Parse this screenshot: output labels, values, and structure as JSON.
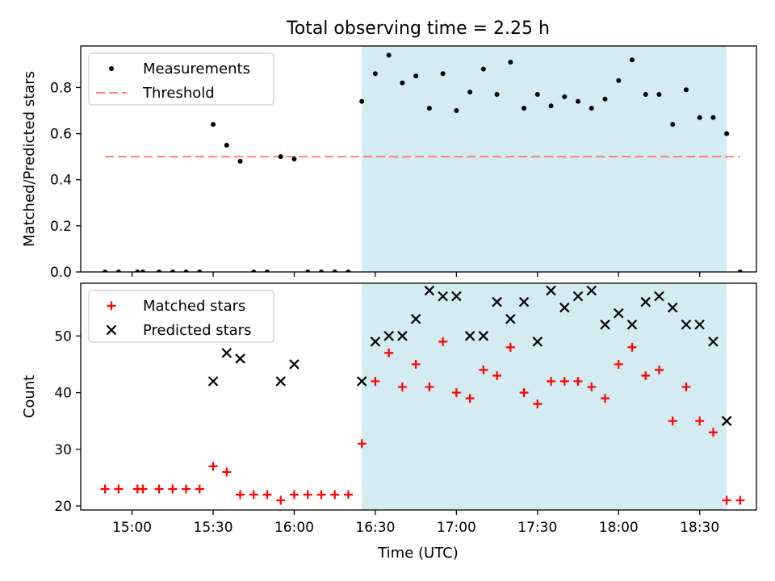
{
  "figure": {
    "title": "Total observing time = 2.25 h",
    "xlabel": "Time (UTC)"
  },
  "colors": {
    "background": "#ffffff",
    "shade": "#d4ebf1",
    "threshold": "#ff7f7f",
    "measurements": "#000000",
    "matched": "#ff0000",
    "predicted": "#000000"
  },
  "chart_data": [
    {
      "type": "scatter",
      "ylabel": "Matched/Predicted stars",
      "ylim": [
        0,
        0.98
      ],
      "yticks": [
        0.0,
        0.2,
        0.4,
        0.6,
        0.8
      ],
      "ytick_labels": [
        "0.0",
        "0.2",
        "0.4",
        "0.6",
        "0.8"
      ],
      "xlim": [
        "14:41",
        "18:51"
      ],
      "xticks": [
        "15:00",
        "15:30",
        "16:00",
        "16:30",
        "17:00",
        "17:30",
        "18:00",
        "18:30"
      ],
      "legend": {
        "placement": "top-left",
        "entries": [
          "Measurements",
          "Threshold"
        ]
      },
      "shaded_span": [
        "16:25",
        "18:40"
      ],
      "threshold": {
        "value": 0.5,
        "x_start": "14:50",
        "x_end": "18:45"
      },
      "series": [
        {
          "name": "Measurements",
          "marker": "dot",
          "x": [
            "14:50",
            "14:55",
            "15:02",
            "15:04",
            "15:10",
            "15:15",
            "15:20",
            "15:25",
            "15:30",
            "15:35",
            "15:40",
            "15:45",
            "15:50",
            "15:55",
            "16:00",
            "16:05",
            "16:10",
            "16:15",
            "16:20",
            "16:25",
            "16:30",
            "16:35",
            "16:40",
            "16:45",
            "16:50",
            "16:55",
            "17:00",
            "17:05",
            "17:10",
            "17:15",
            "17:20",
            "17:25",
            "17:30",
            "17:35",
            "17:40",
            "17:45",
            "17:50",
            "17:55",
            "18:00",
            "18:05",
            "18:10",
            "18:15",
            "18:20",
            "18:25",
            "18:30",
            "18:35",
            "18:40",
            "18:45"
          ],
          "y": [
            0,
            0,
            0,
            0,
            0,
            0,
            0,
            0,
            0.64,
            0.55,
            0.48,
            0,
            0,
            0.5,
            0.49,
            0,
            0,
            0,
            0,
            0.74,
            0.86,
            0.94,
            0.82,
            0.85,
            0.71,
            0.86,
            0.7,
            0.78,
            0.88,
            0.77,
            0.91,
            0.71,
            0.77,
            0.72,
            0.76,
            0.74,
            0.71,
            0.75,
            0.83,
            0.92,
            0.77,
            0.77,
            0.64,
            0.79,
            0.67,
            0.67,
            0.6,
            0
          ]
        }
      ]
    },
    {
      "type": "scatter",
      "ylabel": "Count",
      "ylim": [
        19.3,
        59.3
      ],
      "yticks": [
        20,
        30,
        40,
        50
      ],
      "ytick_labels": [
        "20",
        "30",
        "40",
        "50"
      ],
      "xlim": [
        "14:41",
        "18:51"
      ],
      "xticks": [
        "15:00",
        "15:30",
        "16:00",
        "16:30",
        "17:00",
        "17:30",
        "18:00",
        "18:30"
      ],
      "xtick_labels": [
        "15:00",
        "15:30",
        "16:00",
        "16:30",
        "17:00",
        "17:30",
        "18:00",
        "18:30"
      ],
      "legend": {
        "placement": "top-left",
        "entries": [
          "Matched stars",
          "Predicted stars"
        ]
      },
      "shaded_span": [
        "16:25",
        "18:40"
      ],
      "series": [
        {
          "name": "Matched stars",
          "marker": "plus",
          "x": [
            "14:50",
            "14:55",
            "15:02",
            "15:04",
            "15:10",
            "15:15",
            "15:20",
            "15:25",
            "15:30",
            "15:35",
            "15:40",
            "15:45",
            "15:50",
            "15:55",
            "16:00",
            "16:05",
            "16:10",
            "16:15",
            "16:20",
            "16:25",
            "16:30",
            "16:35",
            "16:40",
            "16:45",
            "16:50",
            "16:55",
            "17:00",
            "17:05",
            "17:10",
            "17:15",
            "17:20",
            "17:25",
            "17:30",
            "17:35",
            "17:40",
            "17:45",
            "17:50",
            "17:55",
            "18:00",
            "18:05",
            "18:10",
            "18:15",
            "18:20",
            "18:25",
            "18:30",
            "18:35",
            "18:40",
            "18:45"
          ],
          "y": [
            23,
            23,
            23,
            23,
            23,
            23,
            23,
            23,
            27,
            26,
            22,
            22,
            22,
            21,
            22,
            22,
            22,
            22,
            22,
            31,
            42,
            47,
            41,
            45,
            41,
            49,
            40,
            39,
            44,
            43,
            48,
            40,
            38,
            42,
            42,
            42,
            41,
            39,
            45,
            48,
            43,
            44,
            35,
            41,
            35,
            33,
            21,
            21
          ]
        },
        {
          "name": "Predicted stars",
          "marker": "x",
          "x": [
            "15:30",
            "15:35",
            "15:40",
            "15:55",
            "16:00",
            "16:25",
            "16:30",
            "16:35",
            "16:40",
            "16:45",
            "16:50",
            "16:55",
            "17:00",
            "17:05",
            "17:10",
            "17:15",
            "17:20",
            "17:25",
            "17:30",
            "17:35",
            "17:40",
            "17:45",
            "17:50",
            "17:55",
            "18:00",
            "18:05",
            "18:10",
            "18:15",
            "18:20",
            "18:25",
            "18:30",
            "18:35",
            "18:40"
          ],
          "y": [
            42,
            47,
            46,
            42,
            45,
            42,
            49,
            50,
            50,
            53,
            58,
            57,
            57,
            50,
            50,
            56,
            53,
            56,
            49,
            58,
            55,
            57,
            58,
            52,
            54,
            52,
            56,
            57,
            55,
            52,
            52,
            49,
            35
          ]
        }
      ]
    }
  ]
}
